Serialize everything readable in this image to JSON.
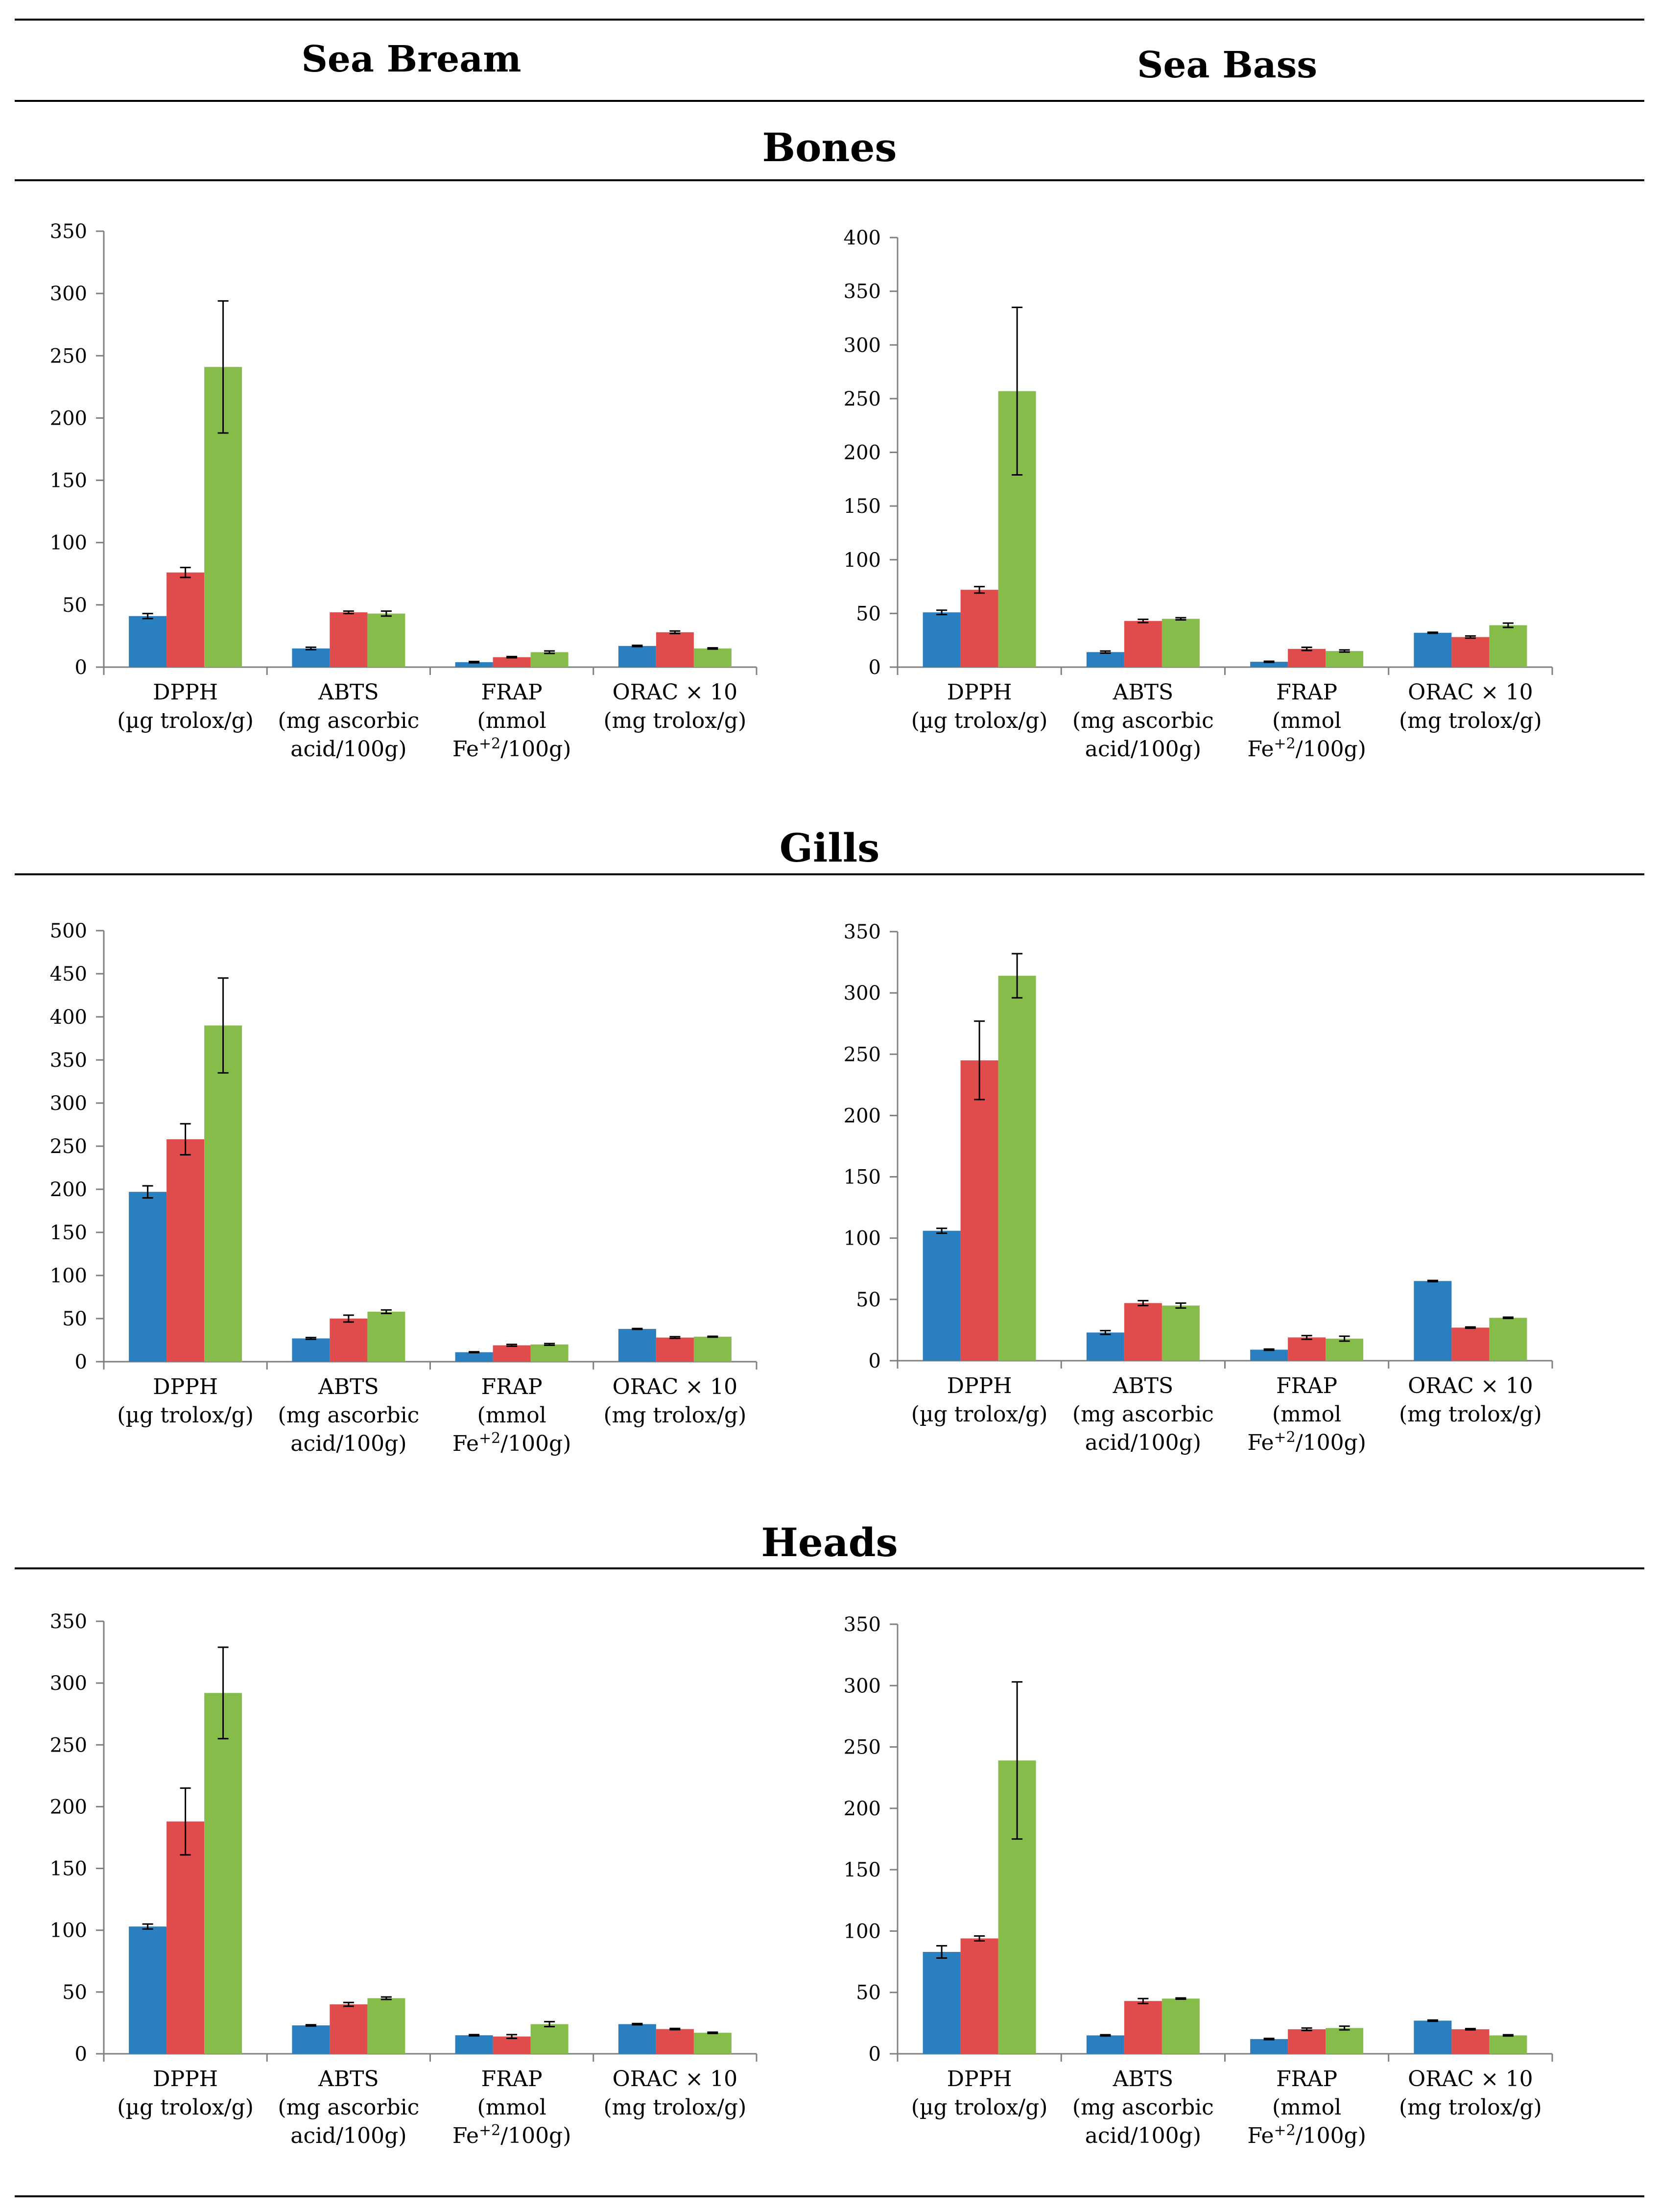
{
  "header": {
    "col_left": "Sea Bream",
    "col_right": "Sea Bass"
  },
  "sections": {
    "bones": "Bones",
    "gills": "Gills",
    "heads": "Heads"
  },
  "colors": {
    "series1": "#2a7fc1",
    "series2": "#e04b4b",
    "series3": "#86bd4a"
  },
  "category_labels": [
    [
      "DPPH",
      "(µg trolox/g)"
    ],
    [
      "ABTS",
      "(mg ascorbic",
      "acid/100g)"
    ],
    [
      "FRAP",
      "(mmol",
      "Fe+2/100g)"
    ],
    [
      "ORAC × 10",
      "(mg trolox/g)"
    ]
  ],
  "chart_data": [
    {
      "id": "bones-sea-bream",
      "type": "bar",
      "section": "Bones",
      "species": "Sea Bream",
      "categories": [
        "DPPH",
        "ABTS",
        "FRAP",
        "ORAC × 10"
      ],
      "ylim": [
        0,
        350
      ],
      "yticks": [
        0,
        50,
        100,
        150,
        200,
        250,
        300,
        350
      ],
      "series": [
        {
          "name": "series 1",
          "values": [
            41,
            15,
            4,
            17
          ],
          "errors": [
            2,
            1,
            0.5,
            0.5
          ]
        },
        {
          "name": "series 2",
          "values": [
            76,
            44,
            8,
            28
          ],
          "errors": [
            4,
            1,
            0.5,
            1
          ]
        },
        {
          "name": "series 3",
          "values": [
            241,
            43,
            12,
            15
          ],
          "errors": [
            53,
            2,
            1,
            0.5
          ]
        }
      ]
    },
    {
      "id": "bones-sea-bass",
      "type": "bar",
      "section": "Bones",
      "species": "Sea Bass",
      "categories": [
        "DPPH",
        "ABTS",
        "FRAP",
        "ORAC × 10"
      ],
      "ylim": [
        0,
        400
      ],
      "yticks": [
        0,
        50,
        100,
        150,
        200,
        250,
        300,
        350,
        400
      ],
      "series": [
        {
          "name": "series 1",
          "values": [
            51,
            14,
            5,
            32
          ],
          "errors": [
            2,
            1,
            0.5,
            0.5
          ]
        },
        {
          "name": "series 2",
          "values": [
            72,
            43,
            17,
            28
          ],
          "errors": [
            3,
            1.5,
            1.5,
            1
          ]
        },
        {
          "name": "series 3",
          "values": [
            257,
            45,
            15,
            39
          ],
          "errors": [
            78,
            1,
            1,
            2
          ]
        }
      ]
    },
    {
      "id": "gills-sea-bream",
      "type": "bar",
      "section": "Gills",
      "species": "Sea Bream",
      "categories": [
        "DPPH",
        "ABTS",
        "FRAP",
        "ORAC × 10"
      ],
      "ylim": [
        0,
        500
      ],
      "yticks": [
        0,
        50,
        100,
        150,
        200,
        250,
        300,
        350,
        400,
        450,
        500
      ],
      "series": [
        {
          "name": "series 1",
          "values": [
            197,
            27,
            11,
            38
          ],
          "errors": [
            7,
            1,
            0.5,
            0.5
          ]
        },
        {
          "name": "series 2",
          "values": [
            258,
            50,
            19,
            28
          ],
          "errors": [
            18,
            4,
            1,
            1
          ]
        },
        {
          "name": "series 3",
          "values": [
            390,
            58,
            20,
            29
          ],
          "errors": [
            55,
            2,
            1,
            0.5
          ]
        }
      ]
    },
    {
      "id": "gills-sea-bass",
      "type": "bar",
      "section": "Gills",
      "species": "Sea Bass",
      "categories": [
        "DPPH",
        "ABTS",
        "FRAP",
        "ORAC × 10"
      ],
      "ylim": [
        0,
        350
      ],
      "yticks": [
        0,
        50,
        100,
        150,
        200,
        250,
        300,
        350
      ],
      "series": [
        {
          "name": "series 1",
          "values": [
            106,
            23,
            9,
            65
          ],
          "errors": [
            2,
            1.5,
            0.5,
            0.5
          ]
        },
        {
          "name": "series 2",
          "values": [
            245,
            47,
            19,
            27
          ],
          "errors": [
            32,
            2,
            1.5,
            0.5
          ]
        },
        {
          "name": "series 3",
          "values": [
            314,
            45,
            18,
            35
          ],
          "errors": [
            18,
            2,
            2,
            0.5
          ]
        }
      ]
    },
    {
      "id": "heads-sea-bream",
      "type": "bar",
      "section": "Heads",
      "species": "Sea Bream",
      "categories": [
        "DPPH",
        "ABTS",
        "FRAP",
        "ORAC × 10"
      ],
      "ylim": [
        0,
        350
      ],
      "yticks": [
        0,
        50,
        100,
        150,
        200,
        250,
        300,
        350
      ],
      "series": [
        {
          "name": "series 1",
          "values": [
            103,
            23,
            15,
            24
          ],
          "errors": [
            2,
            0.5,
            0.5,
            0.5
          ]
        },
        {
          "name": "series 2",
          "values": [
            188,
            40,
            14,
            20
          ],
          "errors": [
            27,
            1.5,
            1.5,
            0.5
          ]
        },
        {
          "name": "series 3",
          "values": [
            292,
            45,
            24,
            17
          ],
          "errors": [
            37,
            1,
            2,
            0.5
          ]
        }
      ]
    },
    {
      "id": "heads-sea-bass",
      "type": "bar",
      "section": "Heads",
      "species": "Sea Bass",
      "categories": [
        "DPPH",
        "ABTS",
        "FRAP",
        "ORAC × 10"
      ],
      "ylim": [
        0,
        350
      ],
      "yticks": [
        0,
        50,
        100,
        150,
        200,
        250,
        300,
        350
      ],
      "series": [
        {
          "name": "series 1",
          "values": [
            83,
            15,
            12,
            27
          ],
          "errors": [
            5,
            0.5,
            0.5,
            0.5
          ]
        },
        {
          "name": "series 2",
          "values": [
            94,
            43,
            20,
            20
          ],
          "errors": [
            2,
            2,
            1,
            0.5
          ]
        },
        {
          "name": "series 3",
          "values": [
            239,
            45,
            21,
            15
          ],
          "errors": [
            64,
            0.5,
            1.5,
            0.5
          ]
        }
      ]
    }
  ]
}
